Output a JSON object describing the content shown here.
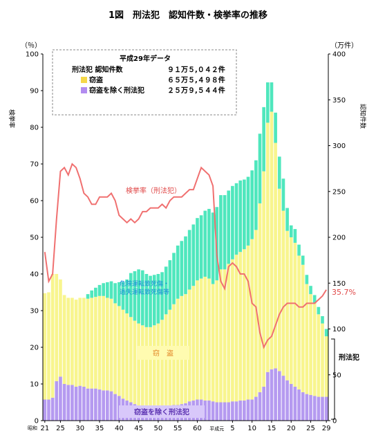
{
  "chart_data": {
    "type": "bar",
    "title": "1図　刑法犯　認知件数・検挙率の推移",
    "y_left_unit": "（％）",
    "y_left_label": "検挙率",
    "y_right_unit": "（万件）",
    "y_right_label": "認知件数",
    "ylim_left": [
      0,
      100
    ],
    "ylim_right": [
      0,
      400
    ],
    "y_left_ticks": [
      "0",
      "10",
      "20",
      "30",
      "40",
      "50",
      "60",
      "70",
      "80",
      "90",
      "100"
    ],
    "y_right_ticks": [
      "0",
      "50",
      "100",
      "150",
      "200",
      "250",
      "300",
      "350",
      "400"
    ],
    "x_prefix_label": "昭和",
    "x_heisei_label": "平成元",
    "x_tick_labels": [
      {
        "i": 0,
        "t": "21"
      },
      {
        "i": 4,
        "t": "25"
      },
      {
        "i": 9,
        "t": "30"
      },
      {
        "i": 14,
        "t": "35"
      },
      {
        "i": 19,
        "t": "40"
      },
      {
        "i": 24,
        "t": "45"
      },
      {
        "i": 29,
        "t": "50"
      },
      {
        "i": 34,
        "t": "55"
      },
      {
        "i": 39,
        "t": "60"
      },
      {
        "i": 48,
        "t": "5"
      },
      {
        "i": 53,
        "t": "10"
      },
      {
        "i": 58,
        "t": "15"
      },
      {
        "i": 63,
        "t": "20"
      },
      {
        "i": 68,
        "t": "25"
      },
      {
        "i": 72,
        "t": "29"
      }
    ],
    "legend": {
      "title": "平成29年データ",
      "header_label": "刑法犯 認知件数",
      "header_value": "９１万５,０４２件",
      "rows": [
        {
          "label": "窃盗",
          "value": "６５万５,４９８件",
          "color": "#f5d84a"
        },
        {
          "label": "窃盗を除く刑法犯",
          "value": "２５万９,５４４件",
          "color": "#b28cf0"
        }
      ]
    },
    "annotations": {
      "rate_label": "検挙率（刑法犯）",
      "traffic_label_1": "危険運転致死傷・",
      "traffic_label_2": "過失運転致死傷等",
      "theft_label": "窃　盗",
      "other_label": "窃盗を除く刑法犯",
      "bracket_label": "刑法犯",
      "last_rate": "35.7%"
    },
    "colors": {
      "theft": "#f8f58e",
      "other": "#b59af0",
      "traffic": "#4fe7bd",
      "rate_line": "#f07070"
    },
    "series": [
      {
        "name": "窃盗を除く刑法犯",
        "unit": "万件",
        "values": [
          23,
          23,
          25,
          43,
          48,
          40,
          39,
          39,
          37,
          38,
          37,
          35,
          35,
          35,
          34,
          33,
          33,
          32,
          29,
          27,
          24,
          22,
          20,
          18,
          16,
          15,
          14,
          14,
          14,
          14,
          14,
          15,
          16,
          17,
          17,
          18,
          19,
          21,
          22,
          23,
          23,
          22,
          22,
          21,
          20,
          20,
          20,
          20,
          21,
          21,
          22,
          22,
          23,
          23,
          26,
          31,
          37,
          53,
          56,
          57,
          54,
          49,
          44,
          40,
          37,
          34,
          31,
          29,
          28,
          27,
          26,
          26,
          26
        ]
      },
      {
        "name": "窃盗",
        "unit": "万件",
        "values": [
          116,
          117,
          135,
          117,
          106,
          97,
          95,
          95,
          95,
          96,
          97,
          98,
          99,
          100,
          102,
          103,
          101,
          101,
          99,
          98,
          97,
          95,
          93,
          91,
          90,
          89,
          88,
          88,
          90,
          92,
          96,
          101,
          105,
          110,
          116,
          118,
          119,
          122,
          125,
          130,
          132,
          135,
          133,
          128,
          133,
          145,
          145,
          151,
          155,
          160,
          162,
          165,
          168,
          175,
          182,
          206,
          235,
          272,
          281,
          246,
          199,
          180,
          163,
          160,
          157,
          146,
          139,
          120,
          110,
          101,
          90,
          80,
          66
        ]
      },
      {
        "name": "危険運転致死傷・過失運転致死傷等",
        "unit": "万件",
        "values": [
          0,
          0,
          0,
          0,
          0,
          0,
          0,
          0,
          0,
          0,
          0,
          5,
          8,
          10,
          12,
          14,
          17,
          19,
          22,
          26,
          30,
          37,
          48,
          54,
          59,
          60,
          58,
          56,
          55,
          54,
          52,
          52,
          54,
          56,
          58,
          60,
          63,
          65,
          67,
          68,
          69,
          72,
          76,
          78,
          80,
          81,
          81,
          80,
          80,
          78,
          78,
          76,
          75,
          75,
          76,
          76,
          70,
          44,
          32,
          33,
          35,
          35,
          25,
          13,
          15,
          12,
          10,
          10,
          9,
          9,
          8,
          8,
          8
        ]
      },
      {
        "name": "検挙率（刑法犯）",
        "unit": "％",
        "values": [
          46,
          38,
          40,
          55,
          68,
          69,
          67,
          70,
          69,
          66,
          62,
          61,
          59,
          59,
          61,
          61,
          61,
          62,
          60,
          56,
          55,
          54,
          55,
          54,
          55,
          57,
          57,
          58,
          58,
          58,
          59,
          58,
          60,
          61,
          61,
          61,
          62,
          63,
          63,
          66,
          69,
          68,
          67,
          64,
          45,
          38,
          36,
          42,
          43,
          42,
          40,
          40,
          38,
          32,
          31,
          24,
          20,
          22,
          23,
          26,
          29,
          31,
          32,
          32,
          32,
          31,
          31,
          32,
          32,
          32,
          33,
          34,
          35.7
        ]
      }
    ]
  }
}
